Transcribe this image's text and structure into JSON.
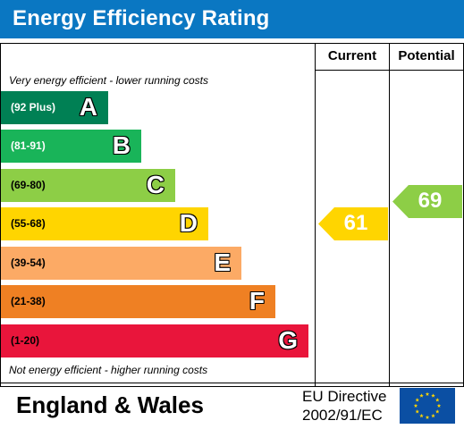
{
  "header": {
    "title": "Energy Efficiency Rating"
  },
  "columns": {
    "current": "Current",
    "potential": "Potential"
  },
  "notes": {
    "top": "Very energy efficient - lower running costs",
    "bottom": "Not energy efficient - higher running costs"
  },
  "bands": [
    {
      "letter": "A",
      "range": "(92 Plus)",
      "color": "#008054",
      "range_color": "#ffffff"
    },
    {
      "letter": "B",
      "range": "(81-91)",
      "color": "#19b459",
      "range_color": "#ffffff"
    },
    {
      "letter": "C",
      "range": "(69-80)",
      "color": "#8dce46",
      "range_color": "#000000"
    },
    {
      "letter": "D",
      "range": "(55-68)",
      "color": "#ffd500",
      "range_color": "#000000"
    },
    {
      "letter": "E",
      "range": "(39-54)",
      "color": "#fcaa65",
      "range_color": "#000000"
    },
    {
      "letter": "F",
      "range": "(21-38)",
      "color": "#ef8023",
      "range_color": "#000000"
    },
    {
      "letter": "G",
      "range": "(1-20)",
      "color": "#e9153b",
      "range_color": "#000000"
    }
  ],
  "ratings": {
    "current": {
      "value": "61",
      "band": "D",
      "color": "#ffd500"
    },
    "potential": {
      "value": "69",
      "band": "C",
      "color": "#8dce46"
    }
  },
  "footer": {
    "region": "England & Wales",
    "directive_line1": "EU Directive",
    "directive_line2": "2002/91/EC"
  },
  "flag": {
    "icon": "eu-flag-icon",
    "background": "#0b4fa3",
    "star_color": "#ffd500"
  }
}
